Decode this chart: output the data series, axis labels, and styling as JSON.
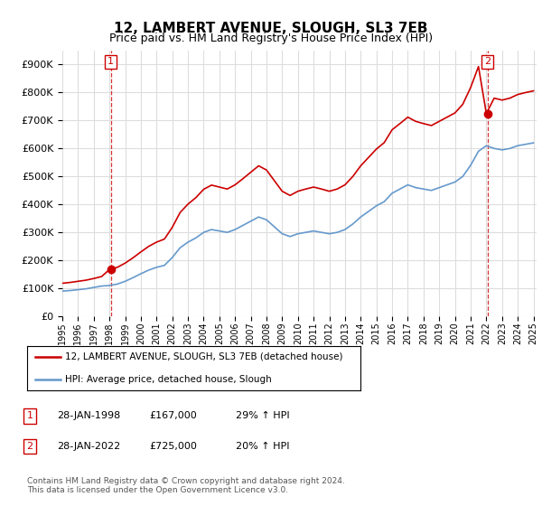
{
  "title": "12, LAMBERT AVENUE, SLOUGH, SL3 7EB",
  "subtitle": "Price paid vs. HM Land Registry's House Price Index (HPI)",
  "ylim": [
    0,
    950000
  ],
  "yticks": [
    0,
    100000,
    200000,
    300000,
    400000,
    500000,
    600000,
    700000,
    800000,
    900000
  ],
  "hpi_color": "#6699cc",
  "price_color": "#cc0000",
  "marker1_date": 1998.08,
  "marker1_price": 167000,
  "marker2_date": 2022.08,
  "marker2_price": 725000,
  "legend_line1": "12, LAMBERT AVENUE, SLOUGH, SL3 7EB (detached house)",
  "legend_line2": "HPI: Average price, detached house, Slough",
  "table_row1_num": "1",
  "table_row1_date": "28-JAN-1998",
  "table_row1_price": "£167,000",
  "table_row1_hpi": "29% ↑ HPI",
  "table_row2_num": "2",
  "table_row2_date": "28-JAN-2022",
  "table_row2_price": "£725,000",
  "table_row2_hpi": "20% ↑ HPI",
  "footnote": "Contains HM Land Registry data © Crown copyright and database right 2024.\nThis data is licensed under the Open Government Licence v3.0.",
  "background_color": "#ffffff",
  "grid_color": "#dddddd",
  "hpi_years": [
    1995.0,
    1995.5,
    1996.0,
    1996.5,
    1997.0,
    1997.5,
    1998.0,
    1998.5,
    1999.0,
    1999.5,
    2000.0,
    2000.5,
    2001.0,
    2001.5,
    2002.0,
    2002.5,
    2003.0,
    2003.5,
    2004.0,
    2004.5,
    2005.0,
    2005.5,
    2006.0,
    2006.5,
    2007.0,
    2007.5,
    2008.0,
    2008.5,
    2009.0,
    2009.5,
    2010.0,
    2010.5,
    2011.0,
    2011.5,
    2012.0,
    2012.5,
    2013.0,
    2013.5,
    2014.0,
    2014.5,
    2015.0,
    2015.5,
    2016.0,
    2016.5,
    2017.0,
    2017.5,
    2018.0,
    2018.5,
    2019.0,
    2019.5,
    2020.0,
    2020.5,
    2021.0,
    2021.5,
    2022.0,
    2022.5,
    2023.0,
    2023.5,
    2024.0,
    2024.5,
    2025.0
  ],
  "hpi_values": [
    90000,
    92000,
    95000,
    98000,
    103000,
    108000,
    110000,
    115000,
    125000,
    138000,
    152000,
    165000,
    175000,
    182000,
    210000,
    245000,
    265000,
    280000,
    300000,
    310000,
    305000,
    300000,
    310000,
    325000,
    340000,
    355000,
    345000,
    320000,
    295000,
    285000,
    295000,
    300000,
    305000,
    300000,
    295000,
    300000,
    310000,
    330000,
    355000,
    375000,
    395000,
    410000,
    440000,
    455000,
    470000,
    460000,
    455000,
    450000,
    460000,
    470000,
    480000,
    500000,
    540000,
    590000,
    610000,
    600000,
    595000,
    600000,
    610000,
    615000,
    620000
  ],
  "price_years": [
    1995.0,
    1995.5,
    1996.0,
    1996.5,
    1997.0,
    1997.5,
    1998.0,
    1998.5,
    1999.0,
    1999.5,
    2000.0,
    2000.5,
    2001.0,
    2001.5,
    2002.0,
    2002.5,
    2003.0,
    2003.5,
    2004.0,
    2004.5,
    2005.0,
    2005.5,
    2006.0,
    2006.5,
    2007.0,
    2007.5,
    2008.0,
    2008.5,
    2009.0,
    2009.5,
    2010.0,
    2010.5,
    2011.0,
    2011.5,
    2012.0,
    2012.5,
    2013.0,
    2013.5,
    2014.0,
    2014.5,
    2015.0,
    2015.5,
    2016.0,
    2016.5,
    2017.0,
    2017.5,
    2018.0,
    2018.5,
    2019.0,
    2019.5,
    2020.0,
    2020.5,
    2021.0,
    2021.5,
    2022.0,
    2022.5,
    2023.0,
    2023.5,
    2024.0,
    2024.5,
    2025.0
  ],
  "price_values": [
    118000,
    121000,
    125000,
    129000,
    135000,
    142000,
    167000,
    175000,
    190000,
    209000,
    230000,
    250000,
    265000,
    276000,
    318000,
    371000,
    401000,
    424000,
    454000,
    469000,
    462000,
    455000,
    470000,
    492000,
    515000,
    538000,
    523000,
    485000,
    447000,
    432000,
    447000,
    455000,
    462000,
    455000,
    447000,
    455000,
    470000,
    500000,
    538000,
    568000,
    598000,
    621000,
    667000,
    689000,
    712000,
    697000,
    689000,
    682000,
    697000,
    712000,
    727000,
    758000,
    818000,
    893000,
    725000,
    780000,
    773000,
    780000,
    793000,
    800000,
    806000
  ],
  "xlim_start": 1995,
  "xlim_end": 2025
}
